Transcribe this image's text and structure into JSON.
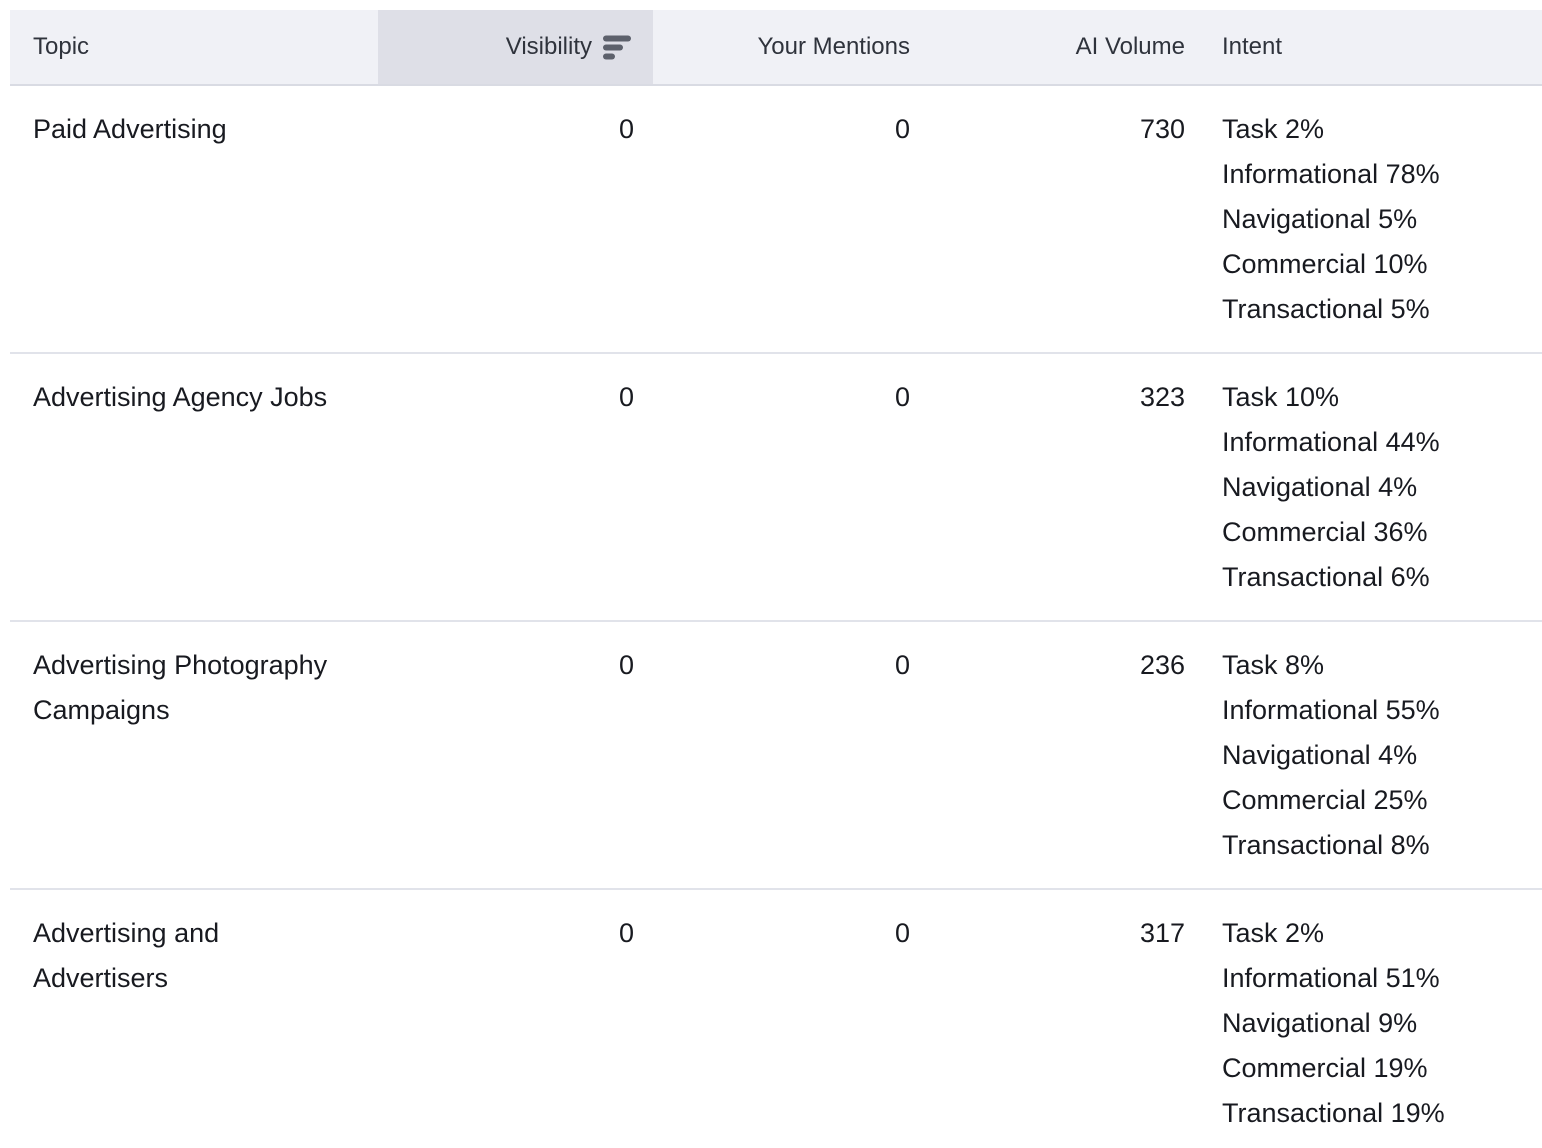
{
  "colors": {
    "header_bg": "#f0f1f6",
    "sorted_header_bg": "#dedfe7",
    "row_divider": "#e1e3ea",
    "header_text": "#2f333c",
    "body_text": "#181a20",
    "sort_icon": "#5d616c"
  },
  "table": {
    "columns": [
      {
        "id": "topic",
        "label": "Topic",
        "align": "left",
        "sorted": false
      },
      {
        "id": "visibility",
        "label": "Visibility",
        "align": "right",
        "sorted": true,
        "sort_direction": "descending"
      },
      {
        "id": "mentions",
        "label": "Your Mentions",
        "align": "right",
        "sorted": false
      },
      {
        "id": "ai_volume",
        "label": "AI Volume",
        "align": "right",
        "sorted": false
      },
      {
        "id": "intent",
        "label": "Intent",
        "align": "left",
        "sorted": false
      }
    ],
    "rows": [
      {
        "topic": "Paid Advertising",
        "visibility": "0",
        "mentions": "0",
        "ai_volume": "730",
        "intent": [
          "Task 2%",
          "Informational 78%",
          "Navigational 5%",
          "Commercial 10%",
          "Transactional 5%"
        ]
      },
      {
        "topic": "Advertising Agency Jobs",
        "visibility": "0",
        "mentions": "0",
        "ai_volume": "323",
        "intent": [
          "Task 10%",
          "Informational 44%",
          "Navigational 4%",
          "Commercial 36%",
          "Transactional 6%"
        ]
      },
      {
        "topic": "Advertising Photography Campaigns",
        "visibility": "0",
        "mentions": "0",
        "ai_volume": "236",
        "intent": [
          "Task 8%",
          "Informational 55%",
          "Navigational 4%",
          "Commercial 25%",
          "Transactional 8%"
        ]
      },
      {
        "topic": "Advertising and Advertisers",
        "visibility": "0",
        "mentions": "0",
        "ai_volume": "317",
        "intent": [
          "Task 2%",
          "Informational 51%",
          "Navigational 9%",
          "Commercial 19%",
          "Transactional 19%"
        ]
      }
    ]
  }
}
